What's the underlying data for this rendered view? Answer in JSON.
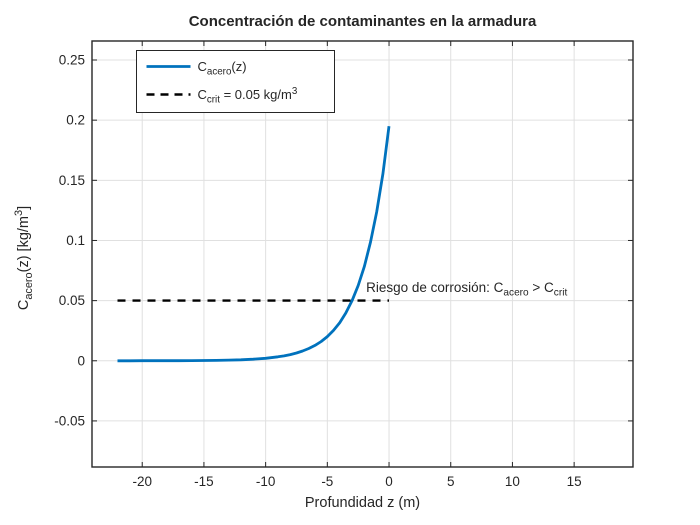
{
  "figure": {
    "background": "#ffffff"
  },
  "chart_data": {
    "type": "line",
    "title": "Concentración de contaminantes en la armadura",
    "xlabel": "Profundidad z (m)",
    "ylabel": "C_{acero}(z) [kg/m^{3}]",
    "xlim": [
      -24.07,
      19.77
    ],
    "ylim": [
      -0.0883,
      0.2658
    ],
    "xticks": [
      -20,
      -15,
      -10,
      -5,
      0,
      5,
      10,
      15
    ],
    "xtick_labels": [
      "-20",
      "-15",
      "-10",
      "-5",
      "0",
      "5",
      "10",
      "15"
    ],
    "yticks": [
      -0.05,
      0,
      0.05,
      0.1,
      0.15,
      0.2,
      0.25
    ],
    "ytick_labels": [
      "-0.05",
      "0",
      "0.05",
      "0.1",
      "0.15",
      "0.2",
      "0.25"
    ],
    "grid": true,
    "legend_position": "northwest",
    "colors": {
      "series_blue": "#0072BD",
      "series_black": "#000000",
      "grid": "#e0e0e0",
      "axis": "#262626",
      "tick_text": "#262626",
      "title_text": "#000000",
      "legend_edge": "#262626",
      "legend_fill": "#ffffff"
    },
    "series": [
      {
        "name": "C_{acero}(z)",
        "style": "solid",
        "color": "#0072BD",
        "width": 2.8,
        "x": [
          -22,
          -21,
          -20,
          -19,
          -18,
          -17,
          -16,
          -15,
          -14,
          -13,
          -12,
          -11,
          -10,
          -9,
          -8.5,
          -8,
          -7.5,
          -7,
          -6.5,
          -6,
          -5.5,
          -5,
          -4.5,
          -4,
          -3.5,
          -3,
          -2.5,
          -2,
          -1.5,
          -1,
          -0.5,
          0
        ],
        "y": [
          1e-05,
          1e-05,
          2e-05,
          3e-05,
          5e-05,
          9e-05,
          0.00014,
          0.00021,
          0.00034,
          0.00053,
          0.00083,
          0.00131,
          0.00207,
          0.00326,
          0.00409,
          0.00514,
          0.00645,
          0.00811,
          0.01018,
          0.01276,
          0.01601,
          0.02009,
          0.02521,
          0.03166,
          0.03974,
          0.04988,
          0.0626,
          0.07856,
          0.09861,
          0.12378,
          0.15536,
          0.195
        ]
      },
      {
        "name": "C_{crit} = 0.05 kg/m^{3}",
        "style": "dashed",
        "color": "#000000",
        "width": 2.4,
        "x": [
          -22,
          0
        ],
        "y": [
          0.05,
          0.05
        ]
      }
    ],
    "legend": {
      "entries": [
        {
          "label": "C_{acero}(z)",
          "style": "solid",
          "color": "#0072BD"
        },
        {
          "label": "C_{crit} = 0.05 kg/m^{3}",
          "style": "dashed",
          "color": "#000000"
        }
      ]
    },
    "annotation": {
      "text": "Riesgo de corrosión: C_{acero} > C_{crit}",
      "x": -1.86,
      "y": 0.0572
    }
  }
}
